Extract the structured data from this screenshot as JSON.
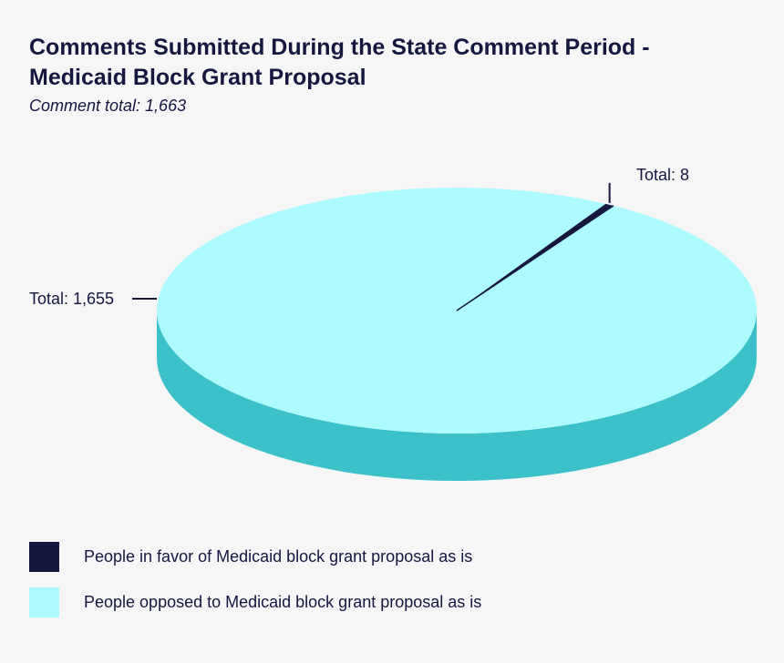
{
  "chart_data": {
    "type": "pie",
    "title": "Comments Submitted During the State Comment Period - Medicaid Block Grant Proposal",
    "subtitle": "Comment total: 1,663",
    "total": 1663,
    "slices": [
      {
        "name": "People in favor of Medicaid block grant proposal as is",
        "value": 8,
        "label": "Total: 8",
        "color": "#15173f",
        "legend_color": "#15173f"
      },
      {
        "name": "People opposed to Medicaid block grant proposal as is",
        "value": 1655,
        "label": "Total: 1,655",
        "color": "#aefbff",
        "side_color": "#3cc1c9",
        "legend_color": "#aefbff"
      }
    ],
    "legend_placement": "bottom-left",
    "style": "3d"
  }
}
